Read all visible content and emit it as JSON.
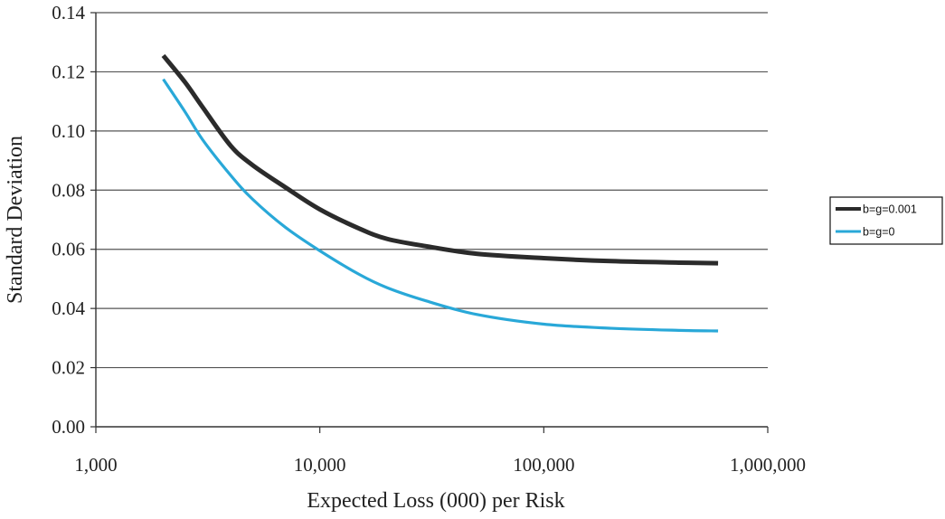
{
  "chart_data": {
    "type": "line",
    "xscale": "log",
    "xlim": [
      1000,
      1000000
    ],
    "ylim": [
      0,
      0.14
    ],
    "xlabel": "Expected Loss (000) per Risk",
    "ylabel": "Standard Deviation",
    "x_ticks": [
      {
        "value": 1000,
        "label": "1,000"
      },
      {
        "value": 10000,
        "label": "10,000"
      },
      {
        "value": 100000,
        "label": "100,000"
      },
      {
        "value": 1000000,
        "label": "1,000,000"
      }
    ],
    "y_ticks": [
      {
        "value": 0.0,
        "label": "0.00"
      },
      {
        "value": 0.02,
        "label": "0.02"
      },
      {
        "value": 0.04,
        "label": "0.04"
      },
      {
        "value": 0.06,
        "label": "0.06"
      },
      {
        "value": 0.08,
        "label": "0.08"
      },
      {
        "value": 0.1,
        "label": "0.10"
      },
      {
        "value": 0.12,
        "label": "0.12"
      },
      {
        "value": 0.14,
        "label": "0.14"
      }
    ],
    "grid": "horizontal",
    "legend": "right",
    "series": [
      {
        "name": "b=g=0.001",
        "color": "#2b2b2b",
        "x": [
          2000,
          2500,
          3000,
          4000,
          5000,
          7000,
          10000,
          15000,
          20000,
          30000,
          50000,
          100000,
          200000,
          400000,
          600000
        ],
        "y": [
          0.1255,
          0.1165,
          0.108,
          0.095,
          0.0885,
          0.081,
          0.0735,
          0.067,
          0.0635,
          0.061,
          0.0585,
          0.057,
          0.056,
          0.0555,
          0.0553
        ]
      },
      {
        "name": "b=g=0",
        "color": "#29a8d8",
        "x": [
          2000,
          2500,
          3000,
          4000,
          5000,
          7000,
          10000,
          15000,
          20000,
          30000,
          50000,
          100000,
          200000,
          400000,
          600000
        ],
        "y": [
          0.1175,
          0.1065,
          0.097,
          0.085,
          0.077,
          0.0675,
          0.0595,
          0.0515,
          0.047,
          0.0425,
          0.038,
          0.0347,
          0.0333,
          0.0326,
          0.0324
        ]
      }
    ]
  }
}
